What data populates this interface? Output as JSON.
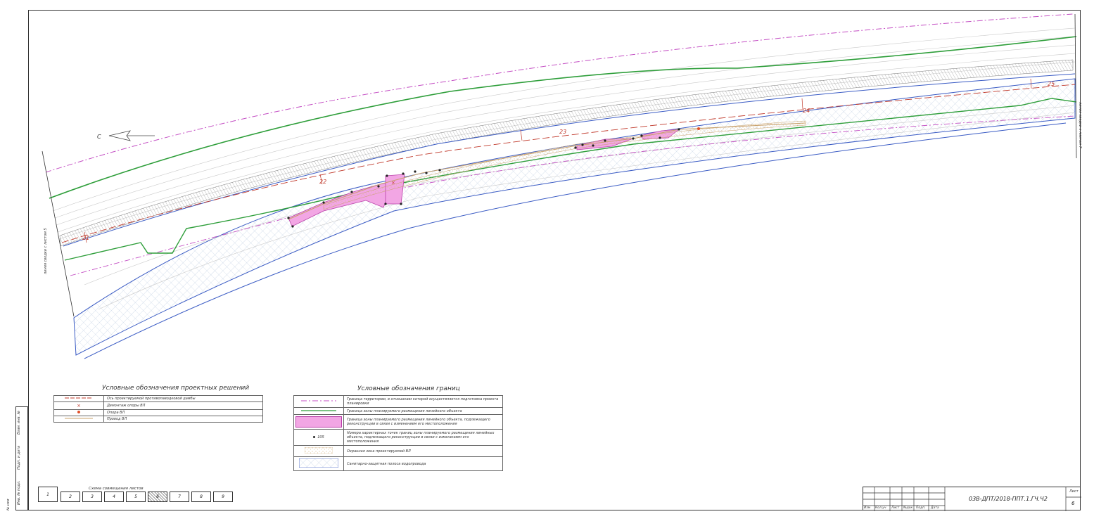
{
  "map": {
    "north_label": "С",
    "section_numbers": [
      "21",
      "22",
      "23",
      "24",
      "25"
    ],
    "match_line_left": "линия сводки с листом 5",
    "match_line_right": "линия сводки с листом 7",
    "colors": {
      "design_axis": "#c0392b",
      "territory_border": "#c44fc4",
      "line_object_zone": "#2e9e3a",
      "reconstruction_zone": "#f2a6e4",
      "sanitary_strip": "#3a5bc4",
      "power_line": "#c8a06a"
    }
  },
  "legend_solutions": {
    "title": "Условные обозначения проектных решений",
    "items": [
      {
        "label": "Ось проектируемой противопаводковой дамбы",
        "symbol": "dash-line-icon"
      },
      {
        "label": "Демонтаж опоры ВЛ",
        "symbol": "cross-icon"
      },
      {
        "label": "Опора ВЛ",
        "symbol": "dot-icon"
      },
      {
        "label": "Провод ВЛ",
        "symbol": "line-icon"
      }
    ]
  },
  "legend_borders": {
    "title": "Условные обозначения границ",
    "items": [
      {
        "label": "Граница территории, в отношении которой осуществляется подготовка проекта планировки",
        "symbol": "dash-dot-icon"
      },
      {
        "label": "Граница зоны планируемого размещения линейного объекта",
        "symbol": "line-icon"
      },
      {
        "label": "Граница зоны планируемого размещения линейного объекта, подлежащего реконструкции в связи с изменением его местоположения",
        "symbol": "fill-icon"
      },
      {
        "label": "Номера характерных точек границ зоны планируемого размещения линейных объекта, подлежащего реконструкции в связи с изменением его местоположения",
        "symbol": "point-icon",
        "symbol_text": "105"
      },
      {
        "label": "Охранная зона проектируемой ВЛ",
        "symbol": "hatch-icon"
      },
      {
        "label": "Санитарно-защитная полоса водопровода",
        "symbol": "grid-icon"
      }
    ]
  },
  "sheet_scheme": {
    "caption": "Схема совмещения листов",
    "sheets": [
      "1",
      "2",
      "3",
      "4",
      "5",
      "6",
      "7",
      "8",
      "9"
    ],
    "current": "6"
  },
  "stamp": {
    "code": "03В-ДПТ/2018-ППТ.1.ГЧ.Ч2",
    "sheet_label": "Лист",
    "sheet_number": "6",
    "columns": [
      "Изм",
      "Кол.уч",
      "Лист",
      "№док",
      "Подп.",
      "Дата"
    ]
  },
  "side_fields": [
    "Взам. инв. №",
    "Подп. и дата",
    "Инв. № подл.",
    "№ изм"
  ]
}
